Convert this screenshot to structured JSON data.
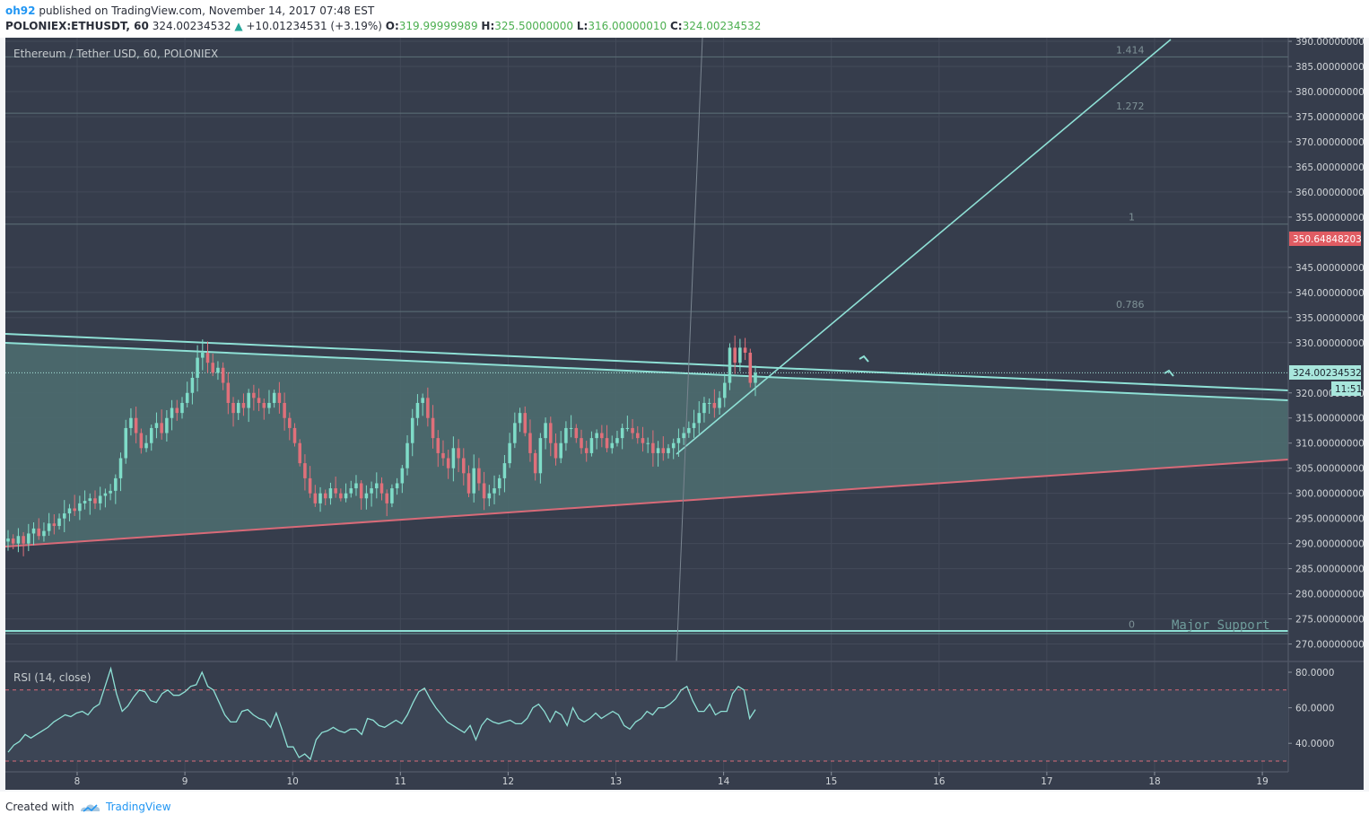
{
  "header": {
    "author": "oh92",
    "published_text": "published on TradingView.com, November 14, 2017 07:48 EST",
    "symbol": "POLONIEX:ETHUSDT, 60",
    "last_price": "324.00234532",
    "change": "+10.01234531 (+3.19%)",
    "o_label": "O:",
    "o_value": "319.99999989",
    "h_label": "H:",
    "h_value": "325.50000000",
    "l_label": "L:",
    "l_value": "316.00000010",
    "c_label": "C:",
    "c_value": "324.00234532"
  },
  "main_pane": {
    "title": "Ethereum / Tether USD, 60, POLONIEX",
    "price_tag": "324.00234532",
    "countdown": "11:51",
    "alert_tag": "350.64848203",
    "annotation": "Major Support"
  },
  "rsi_pane": {
    "title": "RSI (14, close)",
    "ticks": [
      "80.0000",
      "60.0000",
      "40.0000"
    ]
  },
  "footer": {
    "created_with": "Created with",
    "brand": "TradingView"
  },
  "colors": {
    "pane_bg": "#363d4c",
    "grid": "#434a59",
    "up": "#7fdcc8",
    "down": "#e0707a",
    "trend": "#8ee0d5",
    "support": "#d86a78",
    "fib": "#5e7178",
    "triangle_fill": "#4c6b6f"
  },
  "chart_data": [
    {
      "type": "candlestick",
      "y_ticks": [
        "390.00000000",
        "385.00000000",
        "380.00000000",
        "375.00000000",
        "370.00000000",
        "365.00000000",
        "360.00000000",
        "355.00000000",
        "345.00000000",
        "340.00000000",
        "335.00000000",
        "330.00000000",
        "320.00000000",
        "315.00000000",
        "310.00000000",
        "305.00000000",
        "300.00000000",
        "295.00000000",
        "290.00000000",
        "285.00000000",
        "280.00000000",
        "275.00000000",
        "270.00000000"
      ],
      "x_ticks": [
        "8",
        "9",
        "10",
        "11",
        "12",
        "13",
        "14",
        "15",
        "16",
        "17",
        "18",
        "19"
      ],
      "ylim": [
        268,
        391
      ],
      "xlim": [
        7.3,
        19.25
      ],
      "fib_levels": [
        {
          "label": "1.414",
          "value": 386.9
        },
        {
          "label": "1.272",
          "value": 375.7
        },
        {
          "label": "1",
          "value": 353.6
        },
        {
          "label": "0.786",
          "value": 336.2
        },
        {
          "label": "0",
          "value": 272.5
        }
      ],
      "closes": [
        291,
        290,
        291.5,
        290,
        292,
        293,
        291.5,
        292.5,
        294,
        293.5,
        295,
        296,
        297,
        296.5,
        298,
        298.5,
        299,
        298,
        299.5,
        300,
        300.5,
        303,
        307,
        313,
        315,
        312,
        309,
        310,
        313,
        314,
        312,
        315,
        317,
        316,
        318,
        320,
        323,
        327,
        328,
        326,
        324,
        325,
        322,
        318,
        316,
        318,
        317,
        320,
        319,
        318,
        317,
        318,
        320,
        318,
        315,
        313,
        310,
        306,
        303,
        300,
        298,
        300,
        299,
        301,
        300,
        299,
        300,
        301,
        302,
        299,
        300,
        301,
        302,
        300,
        298,
        301,
        302,
        305,
        310,
        315,
        318,
        319,
        315,
        311,
        308,
        307,
        305,
        309,
        307,
        304,
        300,
        305,
        302,
        299,
        300,
        301,
        303,
        306,
        310,
        314,
        316,
        312,
        308,
        304,
        311,
        314,
        310,
        307,
        310,
        313,
        313,
        311,
        309,
        308,
        311,
        312,
        311,
        309,
        310,
        311,
        313,
        313,
        312,
        311,
        310,
        310,
        308,
        309,
        308,
        309,
        310,
        311,
        312,
        313,
        314,
        316,
        318,
        318,
        317,
        319,
        322,
        329,
        326,
        329,
        328,
        322,
        324
      ],
      "rsi": [
        35,
        39,
        41,
        45,
        43,
        45,
        47,
        49,
        52,
        54,
        56,
        55,
        57,
        58,
        56,
        60,
        62,
        72,
        82,
        68,
        58,
        61,
        66,
        70,
        69,
        64,
        63,
        68,
        70,
        67,
        67,
        69,
        72,
        73,
        80,
        72,
        70,
        63,
        56,
        52,
        52,
        58,
        59,
        56,
        54,
        53,
        49,
        57,
        48,
        38,
        38,
        32,
        34,
        31,
        42,
        46,
        47,
        49,
        47,
        46,
        48,
        48,
        45,
        54,
        53,
        50,
        49,
        51,
        53,
        51,
        56,
        63,
        69,
        71,
        65,
        60,
        56,
        52,
        50,
        48,
        46,
        50,
        42,
        50,
        54,
        52,
        51,
        52,
        53,
        51,
        51,
        54,
        60,
        62,
        58,
        52,
        58,
        56,
        50,
        60,
        54,
        52,
        54,
        57,
        54,
        56,
        58,
        56,
        50,
        48,
        52,
        54,
        58,
        56,
        60,
        60,
        62,
        65,
        70,
        72,
        64,
        58,
        58,
        62,
        56,
        58,
        58,
        68,
        72,
        70,
        54,
        59
      ]
    }
  ]
}
